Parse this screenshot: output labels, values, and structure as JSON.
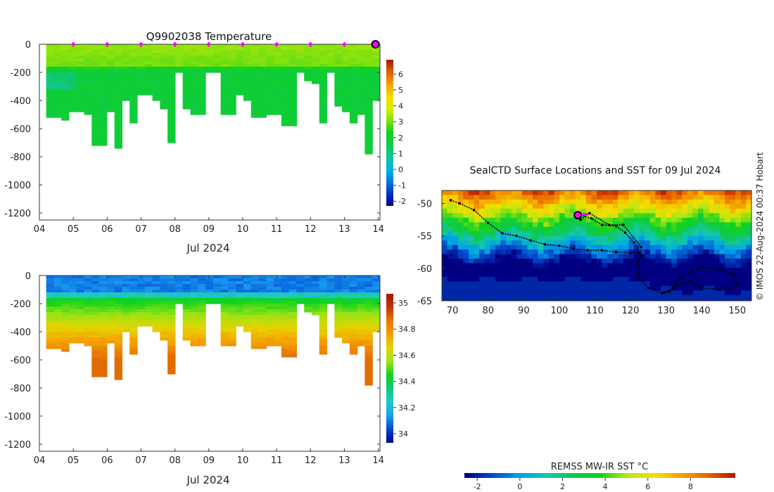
{
  "colors": {
    "temperature_scale": [
      "#000080",
      "#0030c8",
      "#0078e0",
      "#00b4e6",
      "#10c8a0",
      "#10c850",
      "#0fd21e",
      "#7ee010",
      "#d8f000",
      "#f5d800",
      "#f5a000",
      "#e06000",
      "#a01800"
    ],
    "salinity_scale": [
      "#000080",
      "#0046d2",
      "#1aa0f0",
      "#22c8c8",
      "#10c878",
      "#0fd21e",
      "#9be314",
      "#e6d200",
      "#f5a000",
      "#e67800",
      "#c83200",
      "#a01800"
    ],
    "sst_scale": [
      "#000080",
      "#0046c8",
      "#00a0e6",
      "#12c8b4",
      "#10c850",
      "#0fd21e",
      "#b4e614",
      "#f5e000",
      "#f5a000",
      "#e66400",
      "#b41400"
    ],
    "track": "#000000",
    "current_marker": "#ff00ff",
    "profile_marker": "#ff00ff"
  },
  "chart_data": [
    {
      "type": "heatmap",
      "id": "temperature_section",
      "title": "Q9902038  Temperature",
      "xlabel": "Jul 2024",
      "ylabel": "",
      "x_ticks": [
        "04",
        "05",
        "06",
        "07",
        "08",
        "09",
        "10",
        "11",
        "12",
        "13",
        "14"
      ],
      "x_tick_values": [
        4,
        5,
        6,
        7,
        8,
        9,
        10,
        11,
        12,
        13,
        14
      ],
      "xlim": [
        4,
        14.05
      ],
      "y_ticks": [
        "0",
        "-200",
        "-400",
        "-600",
        "-800",
        "-1000",
        "-1200"
      ],
      "y_tick_values": [
        0,
        -200,
        -400,
        -600,
        -800,
        -1000,
        -1200
      ],
      "ylim": [
        -1250,
        0
      ],
      "colorbar": {
        "ticks": [
          "-2",
          "-1",
          "0",
          "1",
          "2",
          "3",
          "4",
          "5",
          "6"
        ],
        "tick_values": [
          -2,
          -1,
          0,
          1,
          2,
          3,
          4,
          5,
          6
        ],
        "range": [
          -2.3,
          6.9
        ]
      },
      "profile_marker_days": [
        5,
        6,
        7,
        8,
        9,
        10,
        11,
        12,
        13
      ],
      "current_position_day": 14,
      "profiles": {
        "start_day": 4.2,
        "end_day": 14.05,
        "max_depths": [
          510,
          510,
          540,
          480,
          480,
          500,
          720,
          720,
          480,
          740,
          400,
          560,
          360,
          360,
          400,
          460,
          690,
          200,
          450,
          490,
          490,
          200,
          200,
          500,
          500,
          360,
          400,
          510,
          510,
          500,
          500,
          570,
          570,
          200,
          250,
          280,
          550,
          200,
          430,
          480,
          550,
          500,
          780,
          400
        ],
        "surface_value": 3.0,
        "mid_value": 1.9,
        "deep_value": 1.8,
        "thermocline_depth": 170,
        "patch_value": 1.2
      }
    },
    {
      "type": "heatmap",
      "id": "salinity_section",
      "title": "",
      "xlabel": "Jul 2024",
      "ylabel": "",
      "x_ticks": [
        "04",
        "05",
        "06",
        "07",
        "08",
        "09",
        "10",
        "11",
        "12",
        "13",
        "14"
      ],
      "x_tick_values": [
        4,
        5,
        6,
        7,
        8,
        9,
        10,
        11,
        12,
        13,
        14
      ],
      "xlim": [
        4,
        14.05
      ],
      "y_ticks": [
        "0",
        "-200",
        "-400",
        "-600",
        "-800",
        "-1000",
        "-1200"
      ],
      "y_tick_values": [
        0,
        -200,
        -400,
        -600,
        -800,
        -1000,
        -1200
      ],
      "ylim": [
        -1250,
        0
      ],
      "colorbar": {
        "ticks": [
          "34",
          "34.2",
          "34.4",
          "34.6",
          "34.8",
          "35"
        ],
        "tick_values": [
          34.0,
          34.2,
          34.4,
          34.6,
          34.8,
          35.0
        ],
        "range": [
          33.93,
          35.07
        ]
      },
      "profiles": {
        "surface_value": 34.2,
        "halocline_depth": 150,
        "gradient_per_m": 0.0011,
        "max_value": 34.88
      }
    },
    {
      "type": "heatmap",
      "id": "sst_map",
      "title": "SealCTD Surface Locations and SST for 09 Jul 2024",
      "xlabel": "",
      "ylabel": "",
      "x_ticks": [
        "70",
        "80",
        "90",
        "100",
        "110",
        "120",
        "130",
        "140",
        "150"
      ],
      "x_tick_values": [
        70,
        80,
        90,
        100,
        110,
        120,
        130,
        140,
        150
      ],
      "xlim": [
        67,
        154
      ],
      "y_ticks": [
        "-50",
        "-55",
        "-60",
        "-65"
      ],
      "y_tick_values": [
        -50,
        -55,
        -60,
        -65
      ],
      "ylim": [
        -65,
        -48
      ],
      "colorbar": {
        "label": "REMSS MW-IR SST °C",
        "ticks": [
          "-2",
          "0",
          "2",
          "4",
          "6",
          "8"
        ],
        "tick_values": [
          -2,
          0,
          2,
          4,
          6,
          8
        ],
        "range": [
          -2.6,
          10.1
        ]
      },
      "track_lonlat": [
        [
          69.5,
          -49.5
        ],
        [
          72,
          -50
        ],
        [
          76,
          -51
        ],
        [
          80,
          -53
        ],
        [
          84,
          -54.6
        ],
        [
          88,
          -55
        ],
        [
          92,
          -55.7
        ],
        [
          96,
          -56.3
        ],
        [
          100,
          -56.5
        ],
        [
          104,
          -57
        ],
        [
          108,
          -57.2
        ],
        [
          112,
          -57.2
        ],
        [
          116,
          -57.5
        ],
        [
          120,
          -57.6
        ],
        [
          122.5,
          -57.6
        ],
        [
          121,
          -56
        ],
        [
          118.5,
          -54.5
        ],
        [
          116,
          -53.5
        ],
        [
          112,
          -53.3
        ],
        [
          109,
          -52.3
        ],
        [
          106,
          -51.8
        ],
        [
          104.5,
          -51.9
        ],
        [
          106,
          -52.5
        ],
        [
          108.5,
          -51.5
        ],
        [
          114,
          -53.3
        ],
        [
          118,
          -53.3
        ],
        [
          123,
          -56.7
        ],
        [
          123,
          -58
        ],
        [
          122,
          -59
        ],
        [
          122.5,
          -61.5
        ],
        [
          125,
          -63
        ],
        [
          129,
          -63.8
        ],
        [
          131,
          -63.6
        ],
        [
          133,
          -62.6
        ],
        [
          137,
          -62
        ],
        [
          140,
          -63
        ],
        [
          145,
          -63.3
        ],
        [
          148,
          -63.2
        ],
        [
          150,
          -62.5
        ],
        [
          149,
          -61
        ],
        [
          145,
          -60.2
        ],
        [
          140,
          -59.8
        ],
        [
          137,
          -60.5
        ],
        [
          134,
          -61.5
        ],
        [
          132,
          -63
        ],
        [
          129.5,
          -63.7
        ]
      ],
      "current_position": [
        105.2,
        -51.8
      ]
    }
  ],
  "attribution": "© IMOS 22-Aug-2024 00:37 Hobart"
}
